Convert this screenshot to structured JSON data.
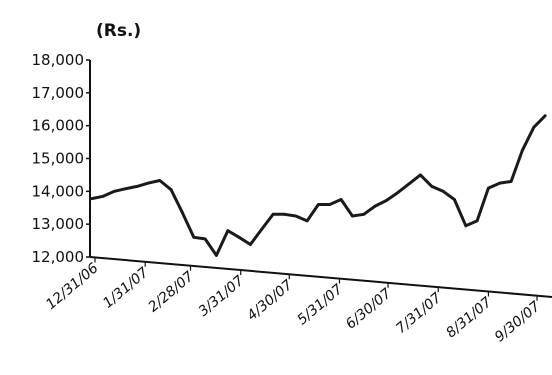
{
  "chart_data": {
    "type": "line",
    "unit_label": "(Rs.)",
    "title": "",
    "xlabel": "",
    "ylabel": "",
    "ylim": [
      12000,
      18000
    ],
    "y_ticks": [
      "12,000",
      "13,000",
      "14,000",
      "15,000",
      "16,000",
      "17,000",
      "18,000"
    ],
    "x_ticks": [
      "12/31/06",
      "1/31/07",
      "2/28/07",
      "3/31/07",
      "4/30/07",
      "5/31/07",
      "6/30/07",
      "7/31/07",
      "8/31/07",
      "9/30/07"
    ],
    "grid": false,
    "legend": "none",
    "line_color": "#1a1a1a",
    "series": [
      {
        "x": [
          "2006-12-29",
          "2007-01-05",
          "2007-01-12",
          "2007-01-19",
          "2007-01-26",
          "2007-02-02",
          "2007-02-09",
          "2007-02-16",
          "2007-02-23",
          "2007-03-02",
          "2007-03-09",
          "2007-03-16",
          "2007-03-23",
          "2007-03-30",
          "2007-04-06",
          "2007-04-13",
          "2007-04-20",
          "2007-04-27",
          "2007-05-04",
          "2007-05-11",
          "2007-05-18",
          "2007-05-25",
          "2007-06-01",
          "2007-06-08",
          "2007-06-15",
          "2007-06-22",
          "2007-06-29",
          "2007-07-06",
          "2007-07-13",
          "2007-07-20",
          "2007-07-27",
          "2007-08-03",
          "2007-08-10",
          "2007-08-17",
          "2007-08-24",
          "2007-08-31",
          "2007-09-07",
          "2007-09-14",
          "2007-09-21",
          "2007-09-28",
          "2007-10-05"
        ],
        "values": [
          13780,
          13850,
          14000,
          14080,
          14150,
          14250,
          14330,
          14050,
          13350,
          12600,
          12550,
          12050,
          12800,
          12600,
          12380,
          12850,
          13300,
          13300,
          13250,
          13100,
          13600,
          13600,
          13750,
          13250,
          13300,
          13550,
          13720,
          13960,
          14230,
          14500,
          14150,
          14000,
          13750,
          12950,
          13100,
          14100,
          14250,
          14300,
          15250,
          15950,
          16300
        ]
      }
    ]
  }
}
